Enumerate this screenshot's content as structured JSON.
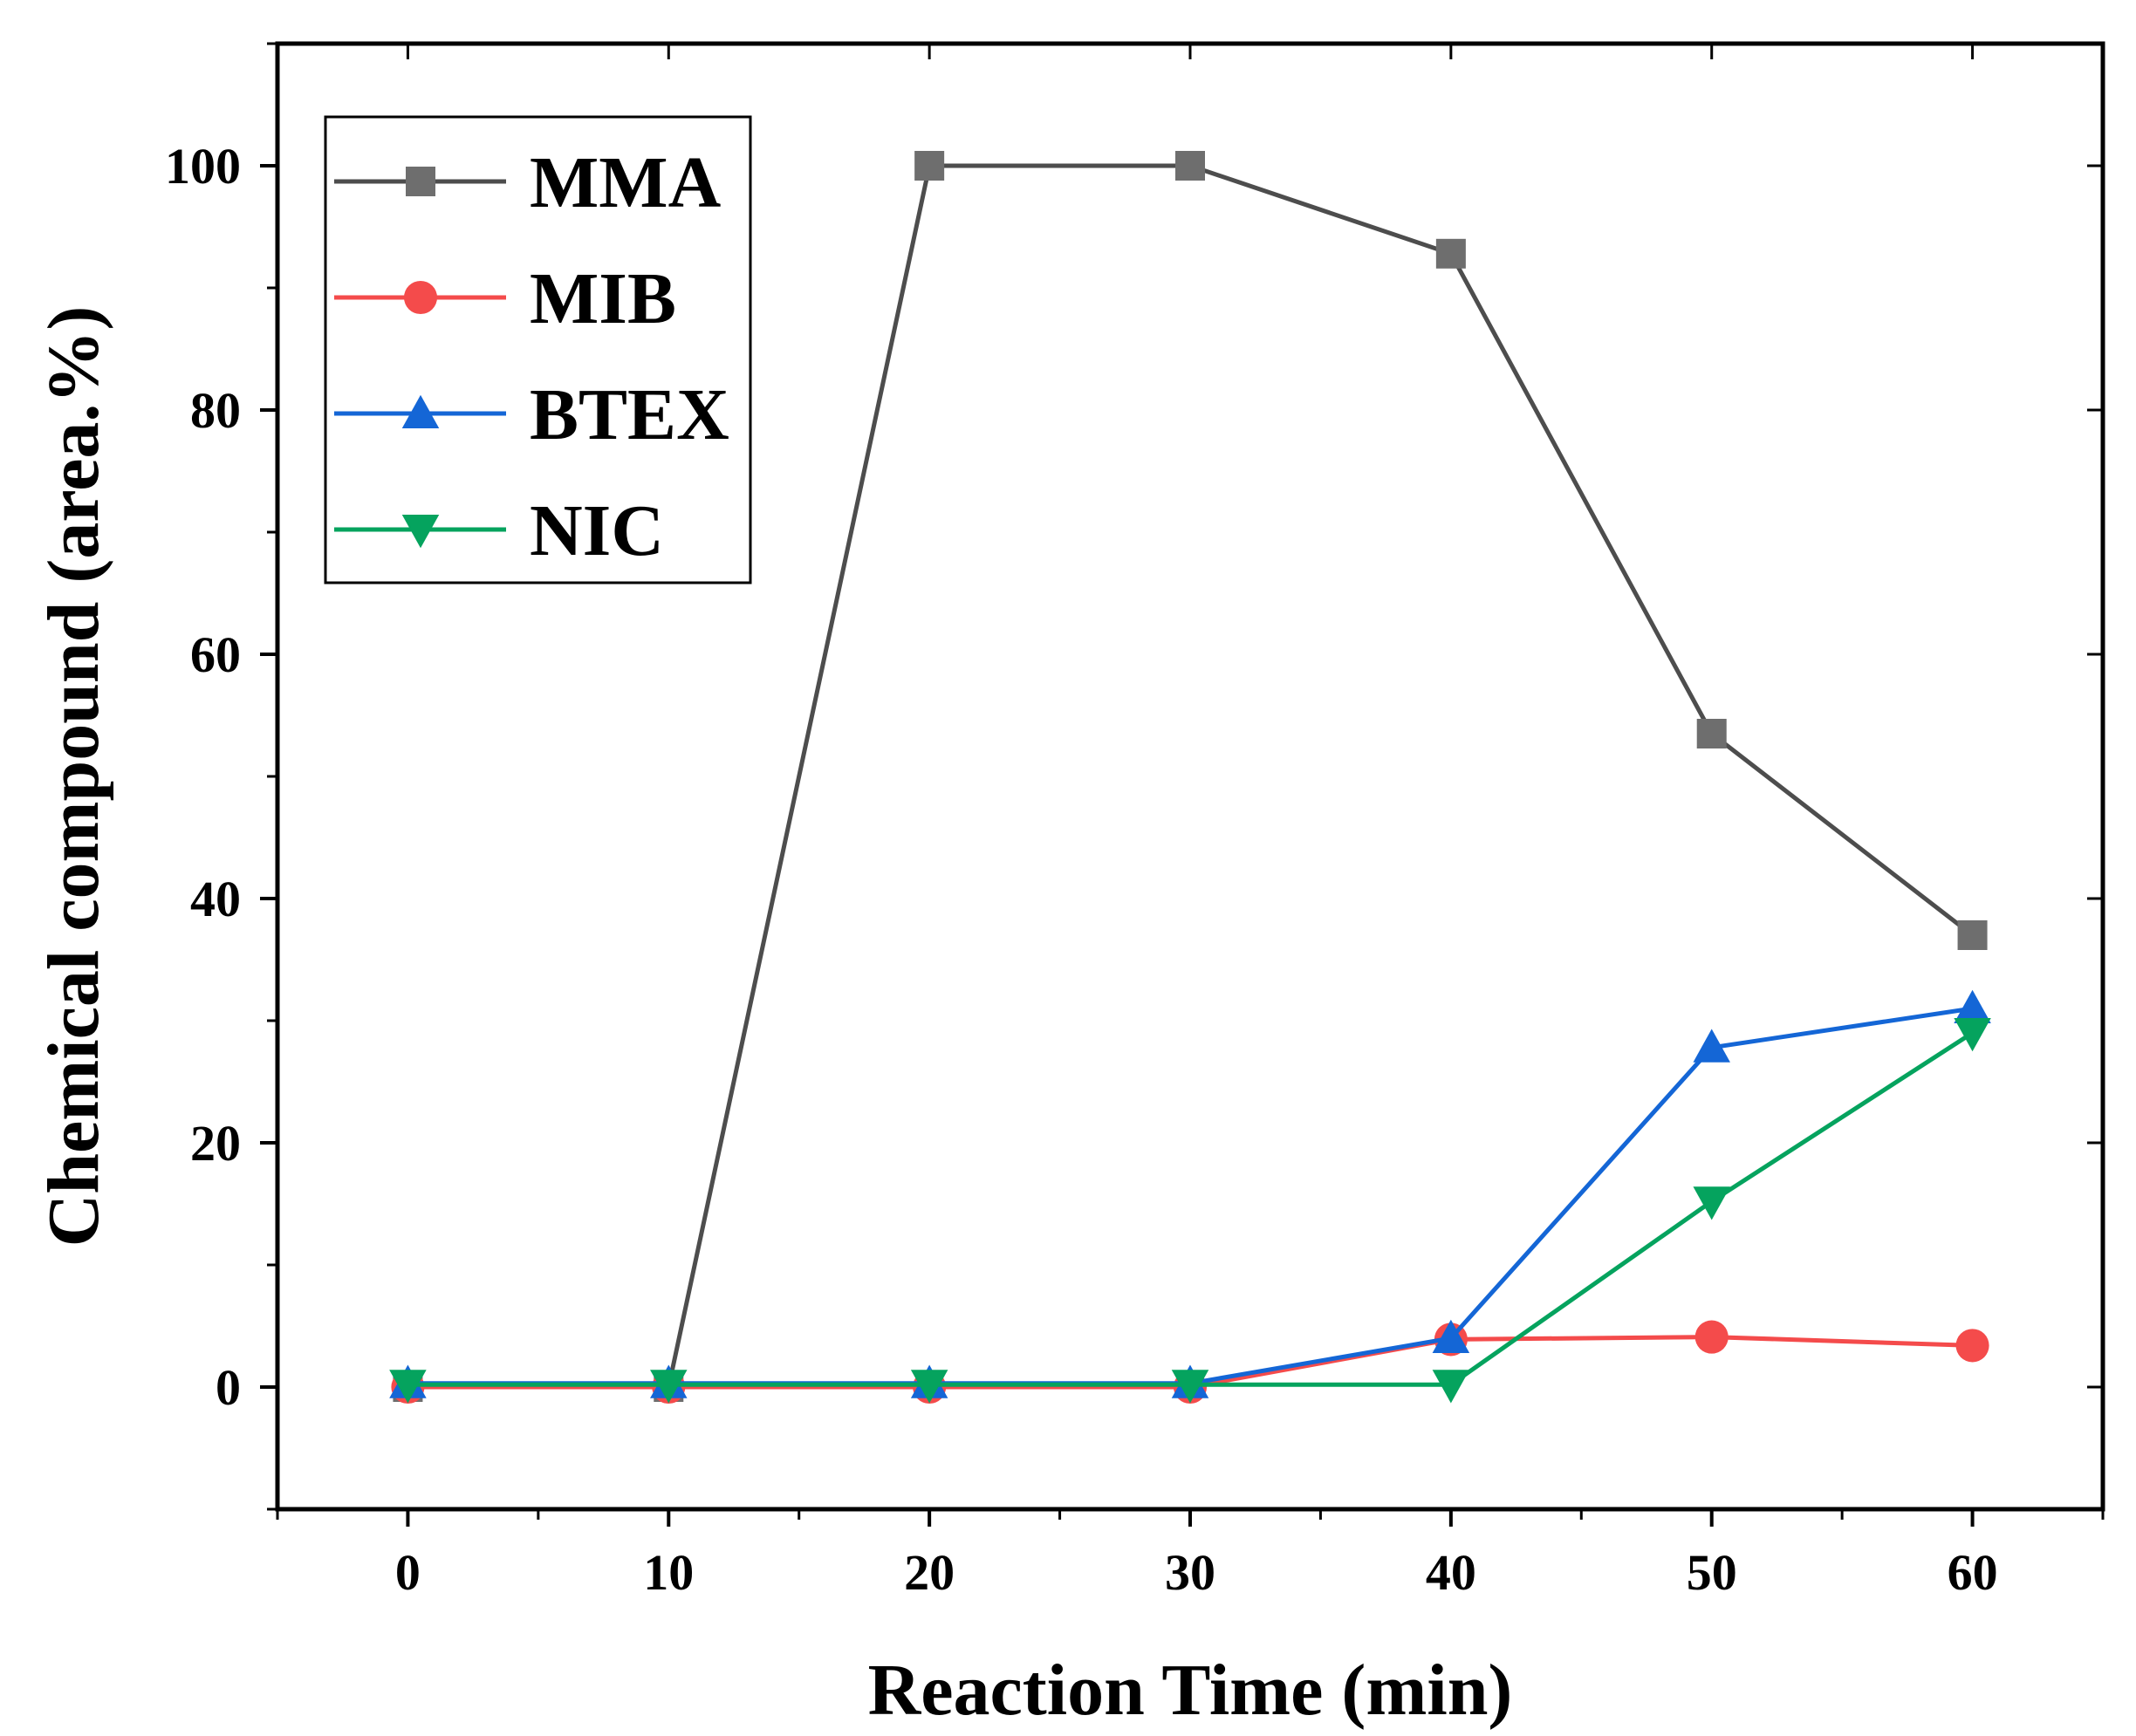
{
  "chart_data": {
    "type": "line",
    "title": "",
    "xlabel": "Reaction Time (min)",
    "ylabel": "Chemical compound (area.%)",
    "xlim": [
      -5,
      65
    ],
    "ylim": [
      -10,
      110
    ],
    "xticks": [
      0,
      10,
      20,
      30,
      40,
      50,
      60
    ],
    "yticks": [
      0,
      20,
      40,
      60,
      80,
      100
    ],
    "xtick_labels": [
      "0",
      "10",
      "20",
      "30",
      "40",
      "50",
      "60"
    ],
    "ytick_labels": [
      "0",
      "20",
      "40",
      "60",
      "80",
      "100"
    ],
    "grid": false,
    "legend_position": "top-left",
    "x": [
      0,
      10,
      20,
      30,
      40,
      50,
      60
    ],
    "series": [
      {
        "name": "MMA",
        "marker": "square",
        "color": "#4d4d4d",
        "marker_color": "#6e6e6e",
        "values": [
          0,
          0,
          100,
          100,
          92.8,
          53.5,
          37
        ]
      },
      {
        "name": "MIB",
        "marker": "circle",
        "color": "#f44b4b",
        "marker_color": "#f44b4b",
        "values": [
          0,
          0,
          0,
          0,
          3.9,
          4.1,
          3.4
        ]
      },
      {
        "name": "BTEX",
        "marker": "triangle-up",
        "color": "#1466d6",
        "marker_color": "#1466d6",
        "values": [
          0.3,
          0.3,
          0.3,
          0.3,
          4.0,
          27.8,
          31.0
        ]
      },
      {
        "name": "NIC",
        "marker": "triangle-down",
        "color": "#05a35e",
        "marker_color": "#05a35e",
        "values": [
          0.2,
          0.2,
          0.2,
          0.2,
          0.2,
          15.2,
          29.0
        ]
      }
    ]
  }
}
